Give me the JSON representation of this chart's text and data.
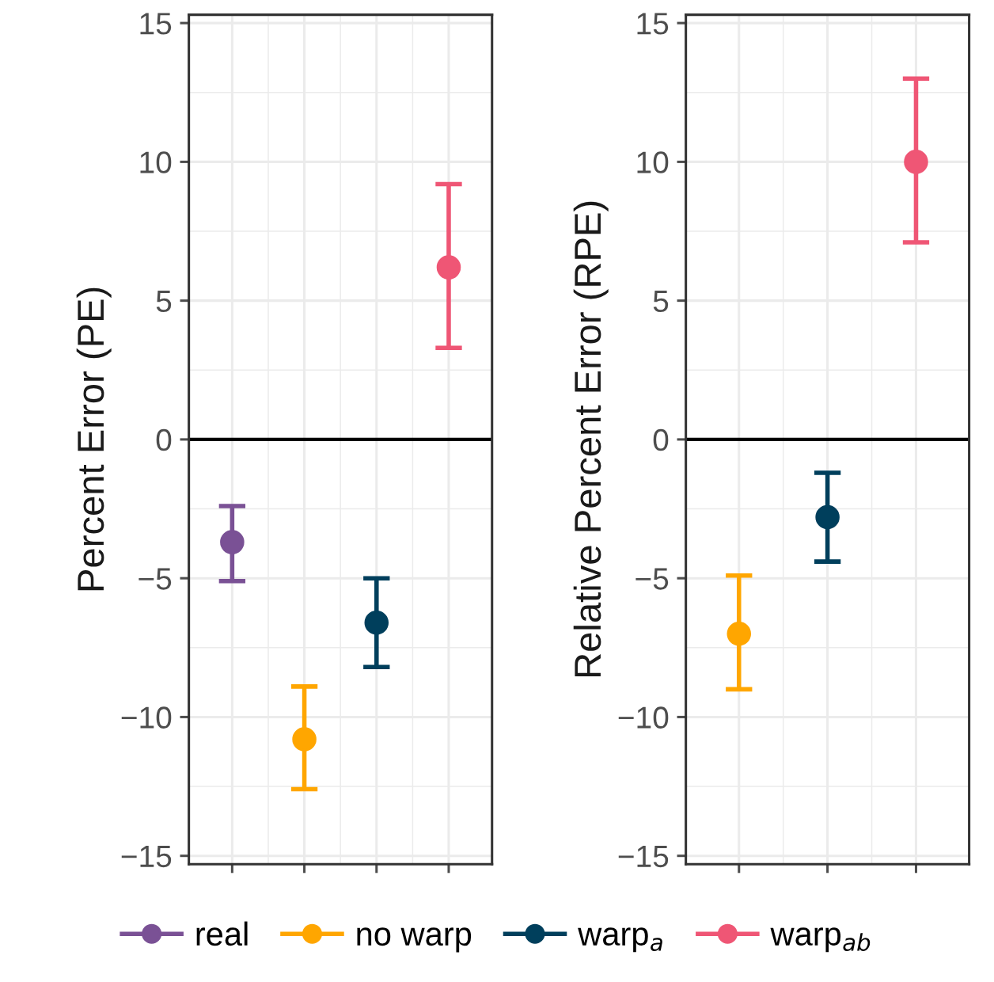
{
  "chart_data": [
    {
      "type": "scatter",
      "ylabel": "Percent Error (PE)",
      "categories": [
        null,
        null,
        null,
        null
      ],
      "ylim": [
        -15.3,
        15.3
      ],
      "yticks": [
        -15,
        -10,
        -5,
        0,
        5,
        10,
        15
      ],
      "grid": true,
      "marker": "circle",
      "legend": "bottom",
      "tick_labels": "y",
      "ref_lines": [
        {
          "axis": "y",
          "value": 0,
          "color": "#000000"
        }
      ],
      "series": [
        {
          "name": "real",
          "color": "#7a5195",
          "values": [
            -3.7,
            null,
            null,
            null
          ],
          "errors": [
            [
              -5.1,
              -2.4
            ],
            null,
            null,
            null
          ]
        },
        {
          "name": "no warp",
          "color": "#ffa600",
          "values": [
            null,
            -10.8,
            null,
            null
          ],
          "errors": [
            null,
            [
              -12.6,
              -8.9
            ],
            null,
            null
          ]
        },
        {
          "name": "warp$_{a}$",
          "color": "#003f5c",
          "values": [
            null,
            null,
            -6.6,
            null
          ],
          "errors": [
            null,
            null,
            [
              -8.2,
              -5.0
            ],
            null
          ]
        },
        {
          "name": "warp$_{ab}$",
          "color": "#ef5675",
          "values": [
            null,
            null,
            null,
            6.2
          ],
          "errors": [
            null,
            null,
            null,
            [
              3.3,
              9.2
            ]
          ]
        }
      ]
    },
    {
      "type": "scatter",
      "ylabel": "Relative Percent Error (RPE)",
      "categories": [
        null,
        null,
        null
      ],
      "ylim": [
        -15.3,
        15.3
      ],
      "yticks": [
        -15,
        -10,
        -5,
        0,
        5,
        10,
        15
      ],
      "grid": true,
      "marker": "circle",
      "tick_labels": "y",
      "ref_lines": [
        {
          "axis": "y",
          "value": 0,
          "color": "#000000"
        }
      ],
      "series": [
        {
          "color": "#ffa600",
          "values": [
            -7.0,
            null,
            null
          ],
          "errors": [
            [
              -9.0,
              -4.9
            ],
            null,
            null
          ]
        },
        {
          "color": "#003f5c",
          "values": [
            null,
            -2.8,
            null
          ],
          "errors": [
            null,
            [
              -4.4,
              -1.2
            ],
            null
          ]
        },
        {
          "color": "#ef5675",
          "values": [
            null,
            null,
            10.0
          ],
          "errors": [
            null,
            null,
            [
              7.1,
              13.0
            ]
          ]
        }
      ]
    }
  ]
}
